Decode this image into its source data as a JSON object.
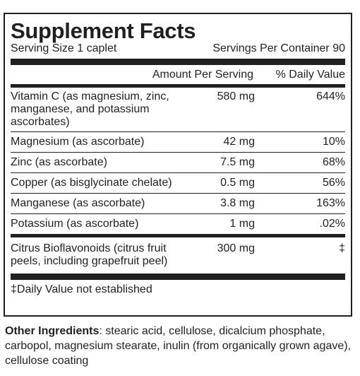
{
  "facts": {
    "title": "Supplement Facts",
    "serving_size": "Serving Size 1 caplet",
    "servings_per_container": "Servings Per Container 90",
    "header_amount": "Amount Per Serving",
    "header_dv": "% Daily Value",
    "rows": [
      {
        "name": "Vitamin C (as magnesium, zinc, manganese, and potassium ascorbates)",
        "amount": "580 mg",
        "dv": "644%"
      },
      {
        "name": "Magnesium (as ascorbate)",
        "amount": "42 mg",
        "dv": "10%"
      },
      {
        "name": "Zinc (as ascorbate)",
        "amount": "7.5 mg",
        "dv": "68%"
      },
      {
        "name": "Copper (as bisglycinate chelate)",
        "amount": "0.5 mg",
        "dv": "56%"
      },
      {
        "name": "Manganese (as ascorbate)",
        "amount": "3.8 mg",
        "dv": "163%"
      },
      {
        "name": "Potassium (as ascorbate)",
        "amount": "1 mg",
        "dv": ".02%"
      },
      {
        "name": "Citrus Bioflavonoids (citrus fruit peels, including grapefruit peel)",
        "amount": "300 mg",
        "dv": "‡"
      }
    ],
    "footnote": "‡Daily Value not established"
  },
  "other_ingredients": {
    "label": "Other Ingredients",
    "text": ": stearic acid, cellulose, dicalcium phosphate, carbopol, magnesium stearate, inulin (from organically grown agave), cellulose coating"
  }
}
